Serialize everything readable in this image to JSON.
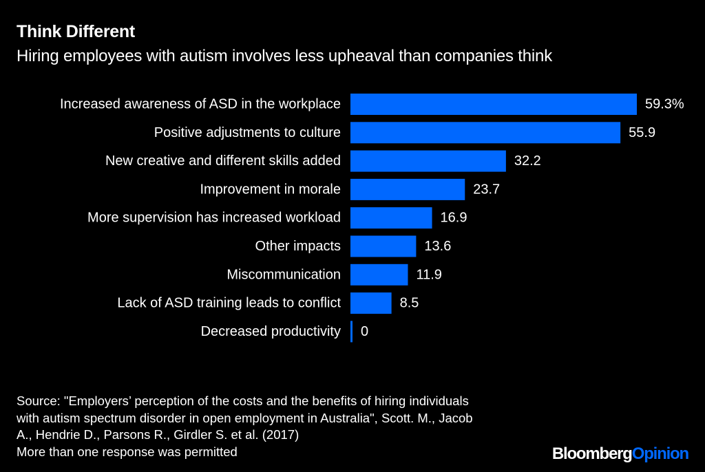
{
  "title": "Think Different",
  "subtitle": "Hiring employees with autism involves less upheaval than companies think",
  "chart_data": {
    "type": "bar",
    "orientation": "horizontal",
    "categories": [
      "Increased awareness of ASD in the workplace",
      "Positive adjustments to culture",
      "New creative and different skills added",
      "Improvement in morale",
      "More supervision has increased workload",
      "Other impacts",
      "Miscommunication",
      "Lack of ASD training leads to conflict",
      "Decreased productivity"
    ],
    "values": [
      59.3,
      55.9,
      32.2,
      23.7,
      16.9,
      13.6,
      11.9,
      8.5,
      0
    ],
    "value_labels": [
      "59.3%",
      "55.9",
      "32.2",
      "23.7",
      "16.9",
      "13.6",
      "11.9",
      "8.5",
      "0"
    ],
    "xlim": [
      0,
      59.3
    ],
    "grid": false,
    "bar_color": "#0068ff"
  },
  "source_lines": [
    "Source: \"Employers’ perception of the costs and the benefits of hiring individuals",
    "with autism spectrum disorder in open employment in Australia\", Scott. M., Jacob",
    "A., Hendrie D., Parsons R., Girdler S. et al. (2017)",
    "More than one response was permitted"
  ],
  "brand": {
    "part1": "Bloomberg",
    "part2": "Opinion"
  }
}
